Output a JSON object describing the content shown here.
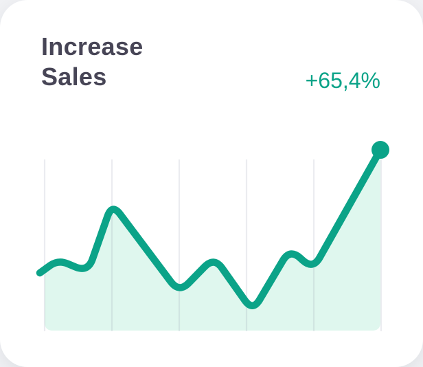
{
  "card": {
    "title": "Increase Sales",
    "title_lines": [
      "Increase",
      "Sales"
    ],
    "trend_value": "+65,4%"
  },
  "colors": {
    "accent": "#0BA388",
    "area_fill": "#DFF7EE",
    "gridline": "rgba(128,137,162,0.16)",
    "title_text": "#474556",
    "card_background": "#FFFFFF"
  },
  "chart_data": {
    "type": "area",
    "title": "Increase Sales",
    "annotation": "+65,4%",
    "legend": false,
    "grid": "vertical-only",
    "gridlines": {
      "vertical_count": 6,
      "horizontal": false
    },
    "end_marker": "dot",
    "x_range": [
      0,
      100
    ],
    "y_range": [
      0,
      100
    ],
    "series": [
      {
        "name": "sales-trend",
        "points": [
          {
            "x": 0,
            "y": 33.7
          },
          {
            "x": 5.4,
            "y": 41.4
          },
          {
            "x": 14.1,
            "y": 34.1
          },
          {
            "x": 21.2,
            "y": 74.3
          },
          {
            "x": 40.9,
            "y": 22.1
          },
          {
            "x": 51.2,
            "y": 43.0
          },
          {
            "x": 62.5,
            "y": 11.2
          },
          {
            "x": 73.4,
            "y": 47.8
          },
          {
            "x": 80.2,
            "y": 35.7
          },
          {
            "x": 100,
            "y": 105.6
          }
        ]
      }
    ]
  }
}
